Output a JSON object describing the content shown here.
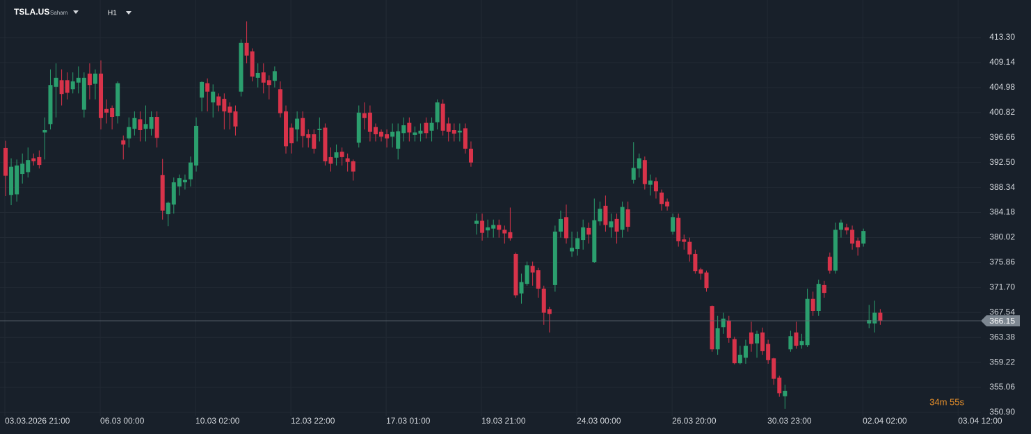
{
  "header": {
    "symbol": "TSLA.US",
    "market": "Saham",
    "timeframe": "H1"
  },
  "chart_data": {
    "type": "candlestick",
    "categories": [
      "03.03.2026 21:00",
      null,
      null,
      null,
      null,
      null,
      null,
      null,
      null,
      null,
      null,
      null,
      null,
      null,
      null,
      null,
      null,
      "06.03 00:00",
      null,
      null,
      null,
      null,
      null,
      null,
      null,
      null,
      null,
      null,
      null,
      null,
      null,
      null,
      null,
      null,
      "10.03 02:00",
      null,
      null,
      null,
      null,
      null,
      null,
      null,
      null,
      null,
      null,
      null,
      null,
      null,
      null,
      null,
      null,
      "12.03 22:00",
      null,
      null,
      null,
      null,
      null,
      null,
      null,
      null,
      null,
      null,
      null,
      null,
      null,
      null,
      null,
      null,
      "17.03 01:00",
      null,
      null,
      null,
      null,
      null,
      null,
      null,
      null,
      null,
      null,
      null,
      null,
      null,
      null,
      null,
      null,
      "19.03 21:00",
      null,
      null,
      null,
      null,
      null,
      null,
      null,
      null,
      null,
      null,
      null,
      null,
      null,
      null,
      null,
      null,
      "24.03 00:00",
      null,
      null,
      null,
      null,
      null,
      null,
      null,
      null,
      null,
      null,
      null,
      null,
      null,
      null,
      null,
      null,
      "26.03 20:00",
      null,
      null,
      null,
      null,
      null,
      null,
      null,
      null,
      null,
      null,
      null,
      null,
      null,
      null,
      null,
      null,
      "30.03 23:00",
      null,
      null,
      null,
      null,
      null,
      null,
      null,
      null,
      null,
      null,
      null,
      null,
      null,
      null,
      null,
      null,
      "02.04 02:00",
      null,
      null,
      null,
      null,
      null,
      null,
      null,
      null,
      null,
      null,
      null,
      null,
      null,
      null,
      null,
      null,
      "03.04 12:00"
    ],
    "open": [
      394.9,
      387.1,
      387.2,
      390.6,
      390.9,
      393.2,
      393.4,
      397.5,
      398.9,
      405.1,
      406.2,
      406.2,
      404.7,
      405.8,
      401.3,
      407.3,
      405.6,
      407.3,
      401.4,
      401.6,
      400.2,
      396.2,
      396.5,
      398.1,
      399.7,
      398.1,
      398.1,
      400.1,
      390.4,
      383.9,
      385.5,
      388.5,
      389.2,
      389.7,
      392.0,
      403.3,
      405.7,
      402.5,
      403.5,
      403.1,
      401.8,
      401.0,
      404.3,
      412.4,
      411.0,
      406.6,
      407.5,
      406.2,
      406.1,
      404.7,
      401.0,
      398.3,
      398.0,
      399.9,
      397.2,
      397.2,
      397.9,
      398.3,
      393.4,
      393.3,
      394.3,
      393.2,
      392.7,
      395.8,
      400.7,
      400.8,
      398.4,
      397.6,
      397.2,
      396.8,
      394.8,
      397.4,
      399.1,
      397.1,
      397.3,
      399.1,
      397.8,
      399.2,
      402.3,
      399.0,
      397.9,
      397.5,
      398.2,
      394.8,
      382.3,
      382.8,
      381.2,
      381.5,
      382.1,
      381.3,
      380.9,
      377.3,
      370.7,
      372.3,
      375.3,
      374.6,
      371.5,
      368.1,
      372.1,
      381.0,
      383.4,
      377.7,
      378.1,
      379.6,
      381.6,
      375.9,
      382.7,
      385.3,
      381.7,
      383.1,
      381.3,
      384.7,
      389.6,
      391.5,
      392.9,
      388.8,
      389.4,
      387.5,
      386.0,
      381.0,
      383.3,
      379.7,
      379.3,
      377.3,
      374.7,
      374.2,
      368.6,
      361.4,
      365.1,
      366.2,
      363.1,
      359.1,
      360.0,
      364.2,
      362.4,
      364.2,
      362.3,
      359.9,
      356.7,
      353.6,
      361.4,
      364.2,
      362.1,
      362.1,
      369.8,
      367.8,
      372.1,
      376.8,
      374.5,
      381.3,
      381.7,
      381.3,
      379.5,
      379.0,
      365.7,
      365.7,
      367.5,
      null,
      null,
      null,
      null,
      null,
      null,
      null,
      null,
      null,
      null,
      null,
      null,
      null,
      null
    ],
    "high": [
      396.1,
      393.2,
      393.0,
      394,
      395,
      394,
      394.5,
      400,
      408,
      409,
      408,
      407.5,
      407.5,
      408.5,
      407.5,
      409,
      408,
      409.5,
      403,
      402,
      406,
      397,
      400,
      401,
      401,
      402,
      401,
      401,
      393.1,
      386,
      390,
      390.5,
      390.5,
      393.5,
      400,
      406,
      406.5,
      405.5,
      404,
      404,
      402.5,
      402,
      413,
      416,
      411.5,
      409,
      409,
      407,
      408.5,
      406,
      402,
      399,
      401,
      401,
      398,
      398,
      400,
      399,
      395,
      395.5,
      395,
      394,
      393,
      402,
      402.5,
      402,
      399,
      398,
      398,
      399,
      399,
      400,
      400,
      398.5,
      399,
      400,
      400,
      403,
      403,
      400,
      399,
      399,
      399,
      396,
      384,
      384,
      383,
      383,
      383,
      382,
      385,
      377.5,
      374,
      376,
      376,
      375,
      372,
      368.5,
      382,
      384.5,
      385.5,
      381,
      381,
      383,
      382.5,
      386.5,
      386,
      387,
      384,
      384,
      386,
      386,
      395.9,
      394,
      393.5,
      390.5,
      390,
      388,
      386.5,
      384,
      384,
      380.5,
      380,
      378,
      375,
      374.5,
      368.7,
      367,
      367.5,
      367,
      363.5,
      362,
      363,
      366,
      364.5,
      365,
      363,
      360,
      357,
      355.5,
      364.5,
      366,
      364,
      371.5,
      371,
      373,
      372.8,
      377.5,
      382.5,
      383,
      382.3,
      382,
      380,
      381.5,
      368.8,
      369.5,
      368.1,
      null,
      null,
      null,
      null,
      null,
      null,
      null,
      null,
      null,
      null,
      null,
      null,
      null,
      null
    ],
    "low": [
      386.9,
      385.4,
      386,
      389,
      390,
      392,
      391.5,
      393,
      398,
      400,
      402,
      403,
      404,
      404,
      400,
      403,
      403,
      398,
      399,
      398,
      399,
      393,
      395,
      397,
      396,
      396,
      397,
      395,
      383,
      381.9,
      384,
      387,
      388,
      388.5,
      391,
      401,
      401,
      400,
      401,
      398,
      398,
      397,
      403.5,
      409,
      406,
      405,
      404,
      403,
      405,
      400,
      394,
      394,
      396,
      395,
      395,
      394,
      396,
      392,
      391,
      392,
      392,
      391,
      389.5,
      395,
      398,
      396,
      396,
      396,
      395,
      395,
      393,
      396,
      396,
      396,
      396,
      396.5,
      396,
      398,
      397,
      396,
      396,
      396,
      394,
      391.8,
      380.5,
      379.5,
      380,
      380,
      380,
      379,
      379.5,
      370,
      369,
      372,
      372,
      370,
      365.5,
      364.2,
      371,
      380,
      379,
      376.8,
      377,
      378,
      379,
      375.8,
      382,
      381,
      380,
      379,
      380,
      381,
      389,
      390,
      388,
      387,
      386.5,
      384.5,
      384.5,
      380.5,
      378.5,
      378,
      376,
      374,
      373,
      371,
      361,
      360.5,
      364,
      362.5,
      358.9,
      358.9,
      359,
      361,
      360,
      360.5,
      359,
      355.5,
      353.5,
      351.5,
      361,
      361.5,
      361.5,
      361.8,
      367,
      367,
      370,
      374,
      374,
      380,
      380.5,
      378,
      377,
      378.5,
      364.9,
      364.2,
      365.5,
      null,
      null,
      null,
      null,
      null,
      null,
      null,
      null,
      null,
      null,
      null,
      null,
      null,
      null
    ],
    "close": [
      390.3,
      391.8,
      392.0,
      392.3,
      392.9,
      392.7,
      392.1,
      397.9,
      405.4,
      406.6,
      403.9,
      404.1,
      406.0,
      406.6,
      406.6,
      405.4,
      407.3,
      399.9,
      400.8,
      400.1,
      405.7,
      395.5,
      398.4,
      399.9,
      397.9,
      398.9,
      400.1,
      396.6,
      384.5,
      385.8,
      389.2,
      389.9,
      389.6,
      392.5,
      398.6,
      405.9,
      404.3,
      404.3,
      402.0,
      401.0,
      400.8,
      398.5,
      412.4,
      410.3,
      406.8,
      407.4,
      405.8,
      405.4,
      407.7,
      400.7,
      395.2,
      395.7,
      399.8,
      396.9,
      396.6,
      394.8,
      398.1,
      392.7,
      392.3,
      394.2,
      393.4,
      392.6,
      391.0,
      400.8,
      399.9,
      397.6,
      397.2,
      396.8,
      396.5,
      397.6,
      397.7,
      398.7,
      397.5,
      397.5,
      397.8,
      397.4,
      399.1,
      402.5,
      397.8,
      397.6,
      397.3,
      397.8,
      394.8,
      392.5,
      382.8,
      380.8,
      381.7,
      382.1,
      381.3,
      380.7,
      379.9,
      370.4,
      372.6,
      375.4,
      374.2,
      371.5,
      367.5,
      367.3,
      381.0,
      383.1,
      379.9,
      378.3,
      379.9,
      381.7,
      380.5,
      382.9,
      384.8,
      382.1,
      382.7,
      381.0,
      385.1,
      381.8,
      391.6,
      393.2,
      388.9,
      389.5,
      387.7,
      385.6,
      385.2,
      383.4,
      379.4,
      379.3,
      377.2,
      374.4,
      374.0,
      371.6,
      361.4,
      364.9,
      366.5,
      363.3,
      359.1,
      360.5,
      362.0,
      362.3,
      364.0,
      361.1,
      359.6,
      356.5,
      354.1,
      354.5,
      363.6,
      362.0,
      362.8,
      369.8,
      367.8,
      372.3,
      370.8,
      374.5,
      381.3,
      382.5,
      381.2,
      379.0,
      378.4,
      381.1,
      366.3,
      367.5,
      366.2,
      null,
      null,
      null,
      null,
      null,
      null,
      null,
      null,
      null,
      null,
      null,
      null,
      null,
      null
    ],
    "up_color": "#2b9f6e",
    "down_color": "#d8334a",
    "ylim": [
      350.32,
      419.55
    ],
    "yticks": [
      {
        "value": 413.3,
        "label": "413.30"
      },
      {
        "value": 409.14,
        "label": "409.14"
      },
      {
        "value": 404.98,
        "label": "404.98"
      },
      {
        "value": 400.82,
        "label": "400.82"
      },
      {
        "value": 396.66,
        "label": "396.66"
      },
      {
        "value": 392.5,
        "label": "392.50"
      },
      {
        "value": 388.34,
        "label": "388.34"
      },
      {
        "value": 384.18,
        "label": "384.18"
      },
      {
        "value": 380.02,
        "label": "380.02"
      },
      {
        "value": 375.86,
        "label": "375.86"
      },
      {
        "value": 371.7,
        "label": "371.70"
      },
      {
        "value": 367.54,
        "label": "367.54"
      },
      {
        "value": 363.38,
        "label": "363.38"
      },
      {
        "value": 359.22,
        "label": "359.22"
      },
      {
        "value": 355.06,
        "label": "355.06"
      },
      {
        "value": 350.9,
        "label": "350.90"
      }
    ],
    "grid": true,
    "last_price": 366.15,
    "countdown": "34m 55s"
  }
}
